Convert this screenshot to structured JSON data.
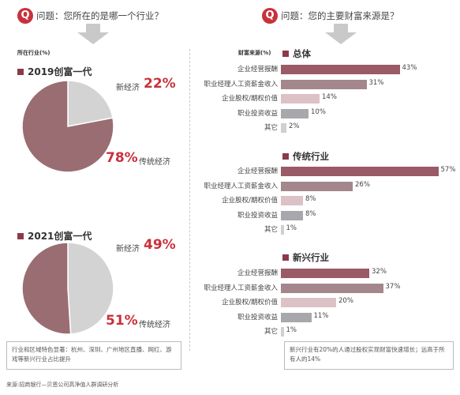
{
  "left": {
    "question": "问题：您所在的是哪一个行业？",
    "subheader": "所在行业(%)",
    "note": "行业和区域特色显著：杭州、深圳、广州地区直播、网红、游戏等新兴行业占比提升"
  },
  "right": {
    "question": "问题：您的主要财富来源是？",
    "subheader": "财富来源(%)",
    "note": "新兴行业有20%的人通过股权实现财富快速增长；远高于所有人的14%"
  },
  "source": "来源:招商银行—贝恩公司高净值人群调研分析",
  "colors": {
    "accent": "#c8323c",
    "traditional": "#9a6d73",
    "new_economy": "#d3d3d3",
    "bar_main": "#9a5a66",
    "bar_second": "#a3878c",
    "bar_equity": "#dcc1c6",
    "bar_invest": "#a8a8ac",
    "bar_other": "#d0d0d0"
  },
  "chart_data": [
    {
      "type": "pie",
      "title": "2019创富一代",
      "slices": [
        {
          "label": "新经济",
          "value": 22,
          "display": "22%"
        },
        {
          "label": "传统经济",
          "value": 78,
          "display": "78%"
        }
      ]
    },
    {
      "type": "pie",
      "title": "2021创富一代",
      "slices": [
        {
          "label": "新经济",
          "value": 49,
          "display": "49%"
        },
        {
          "label": "传统经济",
          "value": 51,
          "display": "51%"
        }
      ]
    },
    {
      "type": "bar",
      "title": "总体",
      "categories": [
        "企业经营报酬",
        "职业经理人工资薪金收入",
        "企业股权/期权价值",
        "职业投资收益",
        "其它"
      ],
      "values": [
        43,
        31,
        14,
        10,
        2
      ],
      "display": [
        "43%",
        "31%",
        "14%",
        "10%",
        "2%"
      ]
    },
    {
      "type": "bar",
      "title": "传统行业",
      "categories": [
        "企业经营报酬",
        "职业经理人工资薪金收入",
        "企业股权/期权价值",
        "职业投资收益",
        "其它"
      ],
      "values": [
        57,
        26,
        8,
        8,
        1
      ],
      "display": [
        "57%",
        "26%",
        "8%",
        "8%",
        "1%"
      ]
    },
    {
      "type": "bar",
      "title": "新兴行业",
      "categories": [
        "企业经营报酬",
        "职业经理人工资薪金收入",
        "企业股权/期权价值",
        "职业投资收益",
        "其它"
      ],
      "values": [
        32,
        37,
        20,
        11,
        1
      ],
      "display": [
        "32%",
        "37%",
        "20%",
        "11%",
        "1%"
      ]
    }
  ]
}
